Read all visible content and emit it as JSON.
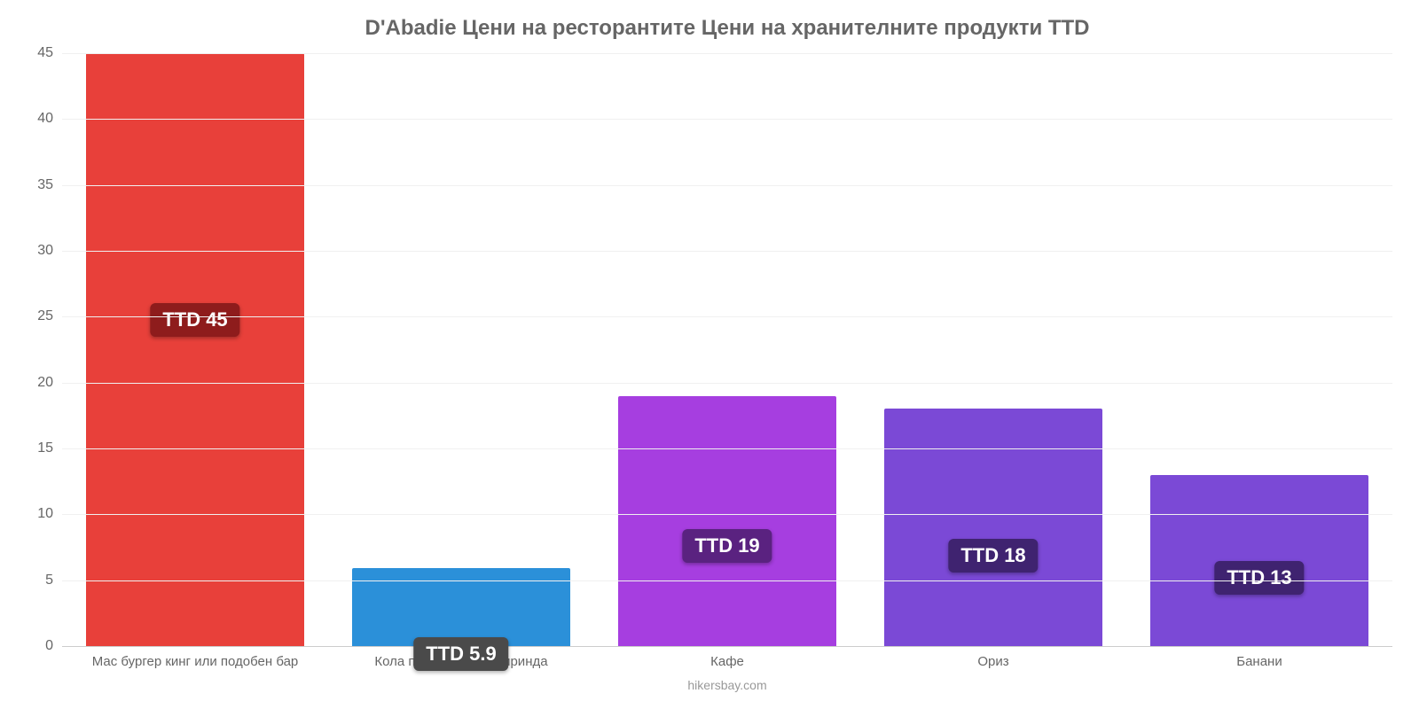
{
  "chart": {
    "type": "bar",
    "title": "D'Abadie Цени на ресторантите Цени на хранителните продукти TTD",
    "title_fontsize": 24,
    "title_color": "#666666",
    "background_color": "#ffffff",
    "grid_color": "#f0f0f0",
    "axis_line_color": "#cccccc",
    "yaxis": {
      "min": 0,
      "max": 45,
      "tick_step": 5,
      "ticks": [
        0,
        5,
        10,
        15,
        20,
        25,
        30,
        35,
        40,
        45
      ],
      "tick_fontsize": 16,
      "tick_color": "#666666"
    },
    "xaxis": {
      "tick_fontsize": 15,
      "tick_color": "#666666"
    },
    "bar_width_pct": 82,
    "categories": [
      "Мас бургер кинг или подобен бар",
      "Кола пепси спрайт миринда",
      "Кафе",
      "Ориз",
      "Банани"
    ],
    "values": [
      45,
      5.9,
      19,
      18,
      13
    ],
    "value_labels": [
      "TTD 45",
      "TTD 5.9",
      "TTD 19",
      "TTD 18",
      "TTD 13"
    ],
    "value_label_offsets": [
      0.45,
      1.1,
      0.6,
      0.62,
      0.6
    ],
    "bar_colors": [
      "#e8403a",
      "#2b90d9",
      "#a63ee0",
      "#7b49d6",
      "#7b49d6"
    ],
    "badge_bg_colors": [
      "#8e1c1c",
      "#4a4a4a",
      "#5a2280",
      "#3f2370",
      "#3f2370"
    ],
    "badge_text_color": "#ffffff",
    "badge_fontsize": 22,
    "attribution": "hikersbay.com",
    "attribution_fontsize": 14,
    "attribution_color": "#999999"
  }
}
